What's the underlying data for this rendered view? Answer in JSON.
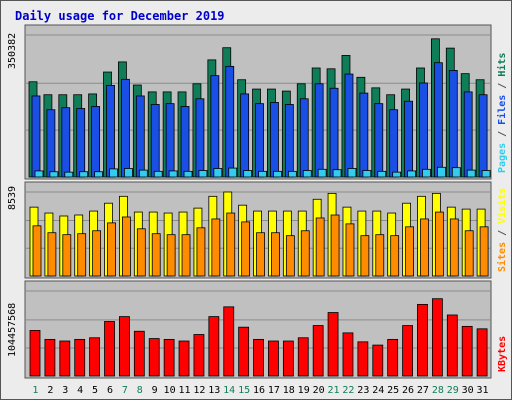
{
  "colors": {
    "panel_bg": "#c0c0c0",
    "hits": "#0f7d58",
    "files": "#1a4fe6",
    "pages": "#33ccee",
    "visits": "#ffff00",
    "sites": "#ff8c00",
    "kbytes": "#ff0000",
    "weekday_label": "#000000",
    "weekend_label": "#0f7d58"
  },
  "chart_data": [
    {
      "type": "bar",
      "title": "Daily usage for December 2019",
      "panel": "hits-files-pages",
      "y_max_label": "350382",
      "ylim": [
        0,
        350382
      ],
      "legend_right": [
        "Pages",
        "Files",
        "Hits"
      ],
      "x": [
        "1",
        "2",
        "3",
        "4",
        "5",
        "6",
        "7",
        "8",
        "9",
        "10",
        "11",
        "12",
        "13",
        "14",
        "15",
        "16",
        "17",
        "18",
        "19",
        "20",
        "21",
        "22",
        "23",
        "24",
        "25",
        "26",
        "27",
        "28",
        "29",
        "30",
        "31"
      ],
      "series": [
        {
          "name": "Hits",
          "values": [
            235000,
            203000,
            203000,
            203000,
            205000,
            259000,
            284000,
            227000,
            210000,
            210000,
            210000,
            230000,
            289000,
            319000,
            240000,
            217000,
            217000,
            212000,
            230000,
            269000,
            267000,
            300000,
            246000,
            220000,
            203000,
            217000,
            269000,
            341000,
            318000,
            255000,
            240000
          ]
        },
        {
          "name": "Files",
          "values": [
            200000,
            166000,
            171000,
            169000,
            174000,
            226000,
            241000,
            200000,
            179000,
            181000,
            174000,
            193000,
            250000,
            273000,
            205000,
            181000,
            184000,
            179000,
            193000,
            230000,
            219000,
            254000,
            207000,
            181000,
            166000,
            187000,
            232000,
            282000,
            263000,
            210000,
            203000
          ]
        },
        {
          "name": "Pages",
          "values": [
            15000,
            13000,
            12000,
            13000,
            13000,
            20000,
            21000,
            17000,
            14000,
            15000,
            14000,
            16000,
            21000,
            22000,
            16000,
            14000,
            14000,
            14000,
            16000,
            19000,
            18000,
            21000,
            16000,
            14000,
            12000,
            15000,
            19000,
            24000,
            23000,
            17000,
            16000
          ]
        }
      ]
    },
    {
      "type": "bar",
      "panel": "visits-sites",
      "y_max_label": "8539",
      "ylim": [
        0,
        8539
      ],
      "legend_right": [
        "Sites",
        "Visits"
      ],
      "x": [
        "1",
        "2",
        "3",
        "4",
        "5",
        "6",
        "7",
        "8",
        "9",
        "10",
        "11",
        "12",
        "13",
        "14",
        "15",
        "16",
        "17",
        "18",
        "19",
        "20",
        "21",
        "22",
        "23",
        "24",
        "25",
        "26",
        "27",
        "28",
        "29",
        "30",
        "31"
      ],
      "series": [
        {
          "name": "Visits",
          "values": [
            7000,
            6400,
            6100,
            6200,
            6600,
            7400,
            8100,
            6500,
            6500,
            6400,
            6500,
            6900,
            8100,
            8539,
            7200,
            6600,
            6600,
            6600,
            6600,
            7800,
            8400,
            7000,
            6600,
            6600,
            6400,
            7400,
            8100,
            8400,
            7000,
            6800,
            6800
          ]
        },
        {
          "name": "Sites",
          "values": [
            5100,
            4400,
            4200,
            4300,
            4600,
            5400,
            6000,
            4800,
            4300,
            4200,
            4200,
            4900,
            5800,
            6400,
            5500,
            4400,
            4400,
            4100,
            4600,
            5900,
            6200,
            5300,
            4100,
            4200,
            4100,
            5000,
            5800,
            6500,
            5800,
            4600,
            5000
          ]
        }
      ]
    },
    {
      "type": "bar",
      "panel": "kbytes",
      "y_max_label": "104457568",
      "ylim": [
        0,
        104457568
      ],
      "legend_right": [
        "KBytes"
      ],
      "x": [
        "1",
        "2",
        "3",
        "4",
        "5",
        "6",
        "7",
        "8",
        "9",
        "10",
        "11",
        "12",
        "13",
        "14",
        "15",
        "16",
        "17",
        "18",
        "19",
        "20",
        "21",
        "22",
        "23",
        "24",
        "25",
        "26",
        "27",
        "28",
        "29",
        "30",
        "31"
      ],
      "series": [
        {
          "name": "KBytes",
          "values": [
            56000000,
            45000000,
            43000000,
            45000000,
            47000000,
            67000000,
            73000000,
            55000000,
            46000000,
            45000000,
            43000000,
            51000000,
            73000000,
            85000000,
            60000000,
            45000000,
            43000000,
            43000000,
            47000000,
            62000000,
            78000000,
            53000000,
            42000000,
            38000000,
            45000000,
            62000000,
            88000000,
            95000000,
            75000000,
            61000000,
            58000000
          ]
        }
      ]
    }
  ],
  "weekend_days": [
    1,
    7,
    8,
    14,
    15,
    21,
    22,
    28,
    29
  ]
}
